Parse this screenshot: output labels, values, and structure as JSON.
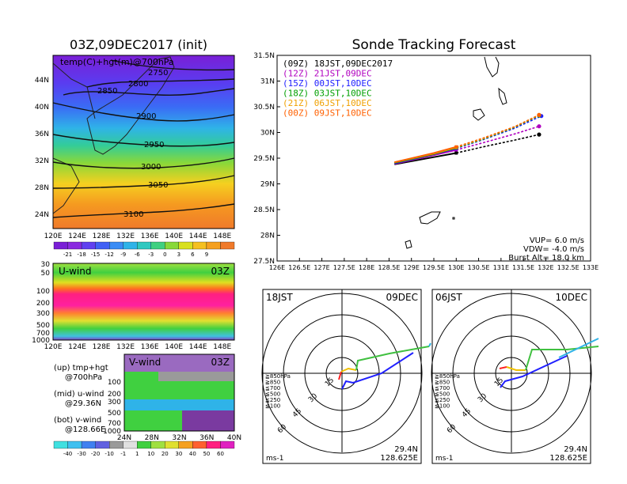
{
  "left_panel": {
    "title": "03Z,09DEC2017 (init)",
    "map_label": "temp(C)+hgt(m)@700hPa",
    "lon_ticks": [
      "120E",
      "124E",
      "128E",
      "132E",
      "136E",
      "140E",
      "144E",
      "148E"
    ],
    "lat_ticks": [
      "44N",
      "40N",
      "36N",
      "32N",
      "28N",
      "24N"
    ],
    "contours": [
      {
        "label": "2750"
      },
      {
        "label": "2800"
      },
      {
        "label": "2850"
      },
      {
        "label": "2900"
      },
      {
        "label": "2950"
      },
      {
        "label": "3000"
      },
      {
        "label": "3050"
      },
      {
        "label": "3100"
      }
    ],
    "temp_colorbar": [
      "-21",
      "-18",
      "-15",
      "-12",
      "-9",
      "-6",
      "-3",
      "0",
      "3",
      "6",
      "9"
    ]
  },
  "u_panel": {
    "label": "U-wind",
    "time": "03Z",
    "p_ticks": [
      "30",
      "50",
      "100",
      "200",
      "300",
      "500",
      "700",
      "1000"
    ],
    "lon_ticks": [
      "120E",
      "124E",
      "128E",
      "132E",
      "136E",
      "140E",
      "144E",
      "148E"
    ]
  },
  "v_panel": {
    "label": "V-wind",
    "time": "03Z",
    "p_ticks": [
      "100",
      "200",
      "300",
      "500",
      "700",
      "1000"
    ],
    "lat_ticks": [
      "24N",
      "28N",
      "32N",
      "36N",
      "40N"
    ],
    "wind_colorbar": [
      "-40",
      "-30",
      "-20",
      "-10",
      "-1",
      "1",
      "10",
      "20",
      "30",
      "40",
      "50",
      "60"
    ]
  },
  "legend_notes": [
    "(up) tmp+hgt",
    "@700hPa",
    "(mid) u-wind",
    "@29.36N",
    "(bot) v-wind",
    "@128.66E"
  ],
  "chart_data": {
    "type": "line",
    "title": "Sonde Tracking Forecast",
    "xlabel": "",
    "ylabel": "",
    "xlim": [
      126,
      133
    ],
    "ylim": [
      27.5,
      31.5
    ],
    "x_ticks": [
      "126E",
      "126.5E",
      "127E",
      "127.5E",
      "128E",
      "128.5E",
      "129E",
      "129.5E",
      "130E",
      "130.5E",
      "131E",
      "131.5E",
      "132E",
      "132.5E",
      "133E"
    ],
    "y_ticks": [
      "27.5N",
      "28N",
      "28.5N",
      "29N",
      "29.5N",
      "30N",
      "30.5N",
      "31N",
      "31.5N"
    ],
    "series": [
      {
        "name": "(09Z)  18JST,09DEC2017",
        "color": "#000000",
        "x": [
          128.62,
          129.5,
          130.0,
          130.6,
          131.3,
          131.85
        ],
        "y": [
          29.38,
          29.52,
          29.6,
          29.72,
          29.85,
          29.96
        ]
      },
      {
        "name": "(12Z)  21JST,09DEC",
        "color": "#b000c0",
        "x": [
          128.62,
          129.5,
          130.0,
          130.6,
          131.3,
          131.85
        ],
        "y": [
          29.39,
          29.56,
          29.66,
          29.8,
          29.97,
          30.12
        ]
      },
      {
        "name": "(15Z)  00JST,10DEC",
        "color": "#2020ff",
        "x": [
          128.62,
          129.5,
          130.0,
          130.6,
          131.3,
          131.9
        ],
        "y": [
          29.4,
          29.58,
          29.69,
          29.86,
          30.08,
          30.32
        ]
      },
      {
        "name": "(18Z)  03JST,10DEC",
        "color": "#00a000",
        "x": [
          128.62,
          129.5,
          130.0,
          130.6,
          131.3,
          131.85
        ],
        "y": [
          29.41,
          29.58,
          29.7,
          29.87,
          30.1,
          30.33
        ]
      },
      {
        "name": "(21Z)  06JST,10DEC",
        "color": "#f0a000",
        "x": [
          128.62,
          129.5,
          130.0,
          130.6,
          131.3,
          131.85
        ],
        "y": [
          29.42,
          29.59,
          29.71,
          29.88,
          30.11,
          30.34
        ]
      },
      {
        "name": "(00Z)  09JST,10DEC",
        "color": "#ff6000",
        "x": [
          128.62,
          129.5,
          130.0,
          130.6,
          131.3,
          131.85
        ],
        "y": [
          29.42,
          29.6,
          29.72,
          29.89,
          30.11,
          30.34
        ]
      }
    ],
    "annotations": [
      "VUP=  6.0  m/s",
      "VDW= -4.0  m/s",
      "Burst Alt=  18.0  km"
    ]
  },
  "hodograph_left": {
    "time": "18JST",
    "date": "09DEC",
    "rings": [
      "15",
      "30",
      "45",
      "60"
    ],
    "levels": [
      "≧850hPa",
      "≧850",
      "≦700",
      "≦500",
      "≦250",
      "≦100"
    ],
    "lat": "29.4N",
    "lon": "128.625E",
    "unit": "ms-1"
  },
  "hodograph_right": {
    "time": "06JST",
    "date": "10DEC",
    "rings": [
      "15",
      "30",
      "45",
      "60"
    ],
    "levels": [
      "≧850hPa",
      "≧850",
      "≦700",
      "≦500",
      "≦250",
      "≦100"
    ],
    "lat": "29.4N",
    "lon": "128.625E",
    "unit": "ms-1"
  }
}
